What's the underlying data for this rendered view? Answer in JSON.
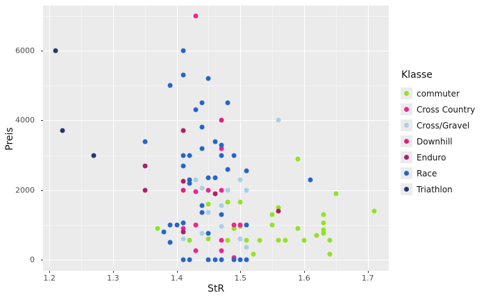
{
  "axes": {
    "x_title": "StR",
    "y_title": "Preis",
    "x_ticks": [
      {
        "v": 1.2,
        "label": "1.2"
      },
      {
        "v": 1.3,
        "label": "1.3"
      },
      {
        "v": 1.4,
        "label": "1.4"
      },
      {
        "v": 1.5,
        "label": "1.5"
      },
      {
        "v": 1.6,
        "label": "1.6"
      },
      {
        "v": 1.7,
        "label": "1.7"
      }
    ],
    "y_ticks": [
      {
        "v": 0,
        "label": "0"
      },
      {
        "v": 2000,
        "label": "2000"
      },
      {
        "v": 4000,
        "label": "4000"
      },
      {
        "v": 6000,
        "label": "6000"
      }
    ]
  },
  "legend": {
    "title": "Klasse",
    "items": [
      {
        "label": "commuter",
        "color": "#94E125"
      },
      {
        "label": "Cross Country",
        "color": "#EC268B"
      },
      {
        "label": "Cross/Gravel",
        "color": "#A9CFE5"
      },
      {
        "label": "Downhill",
        "color": "#E12179"
      },
      {
        "label": "Enduro",
        "color": "#AC2064"
      },
      {
        "label": "Race",
        "color": "#2565C7"
      },
      {
        "label": "Triathlon",
        "color": "#21396B"
      }
    ]
  },
  "colors": {
    "panel_background": "#EBEBEB",
    "grid_major": "#FFFFFF",
    "grid_minor": "#F4F4F4",
    "tick_label": "#4D4D4D"
  },
  "chart_data": {
    "type": "scatter",
    "title": "",
    "xlabel": "StR",
    "ylabel": "Preis",
    "x_domain": [
      1.19,
      1.733
    ],
    "y_domain": [
      -320,
      7300
    ],
    "x_major": [
      1.2,
      1.3,
      1.4,
      1.5,
      1.6,
      1.7
    ],
    "x_minor": [
      1.25,
      1.35,
      1.45,
      1.55,
      1.65
    ],
    "y_major": [
      0,
      2000,
      4000,
      6000
    ],
    "y_minor": [
      1000,
      3000,
      5000,
      7000
    ],
    "grid": true,
    "legend_position": "right",
    "legend_title": "Klasse",
    "series": [
      {
        "name": "commuter",
        "color": "#94E125",
        "points": [
          [
            1.59,
            2900
          ],
          [
            1.65,
            1900
          ],
          [
            1.5,
            1650
          ],
          [
            1.48,
            1650
          ],
          [
            1.45,
            1600
          ],
          [
            1.56,
            1500
          ],
          [
            1.71,
            1400
          ],
          [
            1.63,
            1300
          ],
          [
            1.55,
            1300
          ],
          [
            1.37,
            900
          ],
          [
            1.49,
            900
          ],
          [
            1.5,
            950
          ],
          [
            1.55,
            1000
          ],
          [
            1.59,
            900
          ],
          [
            1.63,
            1050
          ],
          [
            1.63,
            850
          ],
          [
            1.63,
            750
          ],
          [
            1.62,
            700
          ],
          [
            1.42,
            550
          ],
          [
            1.45,
            600
          ],
          [
            1.48,
            550
          ],
          [
            1.51,
            550
          ],
          [
            1.53,
            550
          ],
          [
            1.56,
            550
          ],
          [
            1.57,
            550
          ],
          [
            1.6,
            550
          ],
          [
            1.64,
            550
          ],
          [
            1.52,
            150
          ],
          [
            1.64,
            150
          ]
        ]
      },
      {
        "name": "Cross Country",
        "color": "#EC268B",
        "points": [
          [
            1.43,
            7000
          ],
          [
            1.47,
            3200
          ],
          [
            1.45,
            2000
          ],
          [
            1.47,
            2000
          ],
          [
            1.43,
            1950
          ],
          [
            1.43,
            1000
          ],
          [
            1.49,
            1000
          ],
          [
            1.5,
            1000
          ],
          [
            1.41,
            900
          ],
          [
            1.47,
            550
          ],
          [
            1.47,
            250
          ],
          [
            1.43,
            250
          ],
          [
            1.49,
            50
          ]
        ]
      },
      {
        "name": "Cross/Gravel",
        "color": "#A9CFE5",
        "points": [
          [
            1.56,
            4000
          ],
          [
            1.43,
            2300
          ],
          [
            1.5,
            2300
          ],
          [
            1.44,
            2050
          ],
          [
            1.48,
            2000
          ],
          [
            1.51,
            2000
          ],
          [
            1.47,
            1550
          ],
          [
            1.45,
            1350
          ],
          [
            1.47,
            950
          ],
          [
            1.44,
            750
          ],
          [
            1.41,
            600
          ],
          [
            1.5,
            600
          ],
          [
            1.51,
            350
          ]
        ]
      },
      {
        "name": "Downhill",
        "color": "#E12179",
        "points": [
          [
            1.47,
            4000
          ],
          [
            1.41,
            2000
          ]
        ]
      },
      {
        "name": "Enduro",
        "color": "#AC2064",
        "points": [
          [
            1.41,
            3700
          ],
          [
            1.35,
            2700
          ],
          [
            1.41,
            2250
          ],
          [
            1.35,
            2000
          ],
          [
            1.46,
            1900
          ],
          [
            1.56,
            1400
          ],
          [
            1.41,
            800
          ]
        ]
      },
      {
        "name": "Race",
        "color": "#2565C7",
        "points": [
          [
            1.41,
            6000
          ],
          [
            1.41,
            5300
          ],
          [
            1.45,
            5200
          ],
          [
            1.39,
            5000
          ],
          [
            1.44,
            4500
          ],
          [
            1.48,
            4500
          ],
          [
            1.43,
            4300
          ],
          [
            1.44,
            3800
          ],
          [
            1.35,
            3400
          ],
          [
            1.46,
            3400
          ],
          [
            1.47,
            3300
          ],
          [
            1.44,
            3200
          ],
          [
            1.41,
            3000
          ],
          [
            1.42,
            3000
          ],
          [
            1.47,
            3000
          ],
          [
            1.49,
            3000
          ],
          [
            1.41,
            2700
          ],
          [
            1.48,
            2600
          ],
          [
            1.51,
            2550
          ],
          [
            1.61,
            2300
          ],
          [
            1.42,
            2300
          ],
          [
            1.45,
            2350
          ],
          [
            1.46,
            2350
          ],
          [
            1.42,
            2200
          ],
          [
            1.44,
            1550
          ],
          [
            1.44,
            1350
          ],
          [
            1.47,
            1300
          ],
          [
            1.4,
            1000
          ],
          [
            1.39,
            1000
          ],
          [
            1.41,
            1050
          ],
          [
            1.51,
            1000
          ],
          [
            1.38,
            800
          ],
          [
            1.45,
            750
          ],
          [
            1.39,
            500
          ],
          [
            1.41,
            0
          ],
          [
            1.42,
            0
          ],
          [
            1.45,
            0
          ],
          [
            1.46,
            0
          ],
          [
            1.47,
            0
          ],
          [
            1.49,
            0
          ],
          [
            1.5,
            0
          ],
          [
            1.51,
            0
          ]
        ]
      },
      {
        "name": "Triathlon",
        "color": "#21396B",
        "points": [
          [
            1.21,
            6000
          ],
          [
            1.22,
            3700
          ],
          [
            1.27,
            3000
          ]
        ]
      }
    ]
  }
}
